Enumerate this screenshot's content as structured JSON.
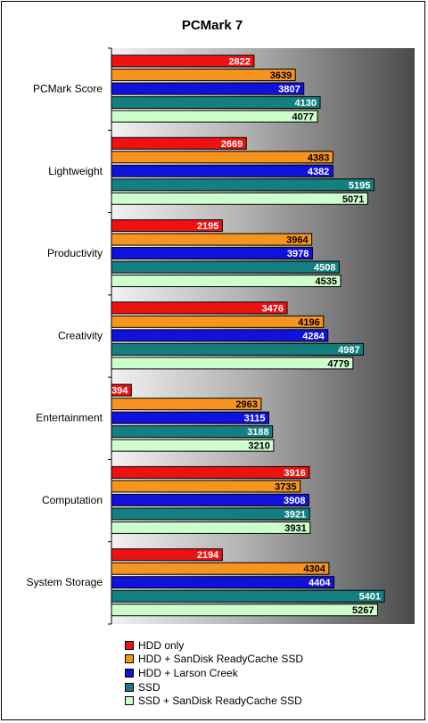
{
  "chart_data": {
    "type": "bar",
    "orientation": "horizontal",
    "title": "PCMark 7",
    "categories": [
      "PCMark Score",
      "Lightweight",
      "Productivity",
      "Creativity",
      "Entertainment",
      "Computation",
      "System Storage"
    ],
    "series": [
      {
        "name": "HDD only",
        "color": "#ee1111",
        "label_color": "#ffffff",
        "values": [
          2822,
          2669,
          2195,
          3476,
          394,
          3916,
          2194
        ]
      },
      {
        "name": "HDD + SanDisk ReadyCache SSD",
        "color": "#f7941d",
        "label_color": "#000000",
        "values": [
          3639,
          4383,
          3964,
          4196,
          2963,
          3735,
          4304
        ]
      },
      {
        "name": "HDD + Larson Creek",
        "color": "#1111dd",
        "label_color": "#ffffff",
        "values": [
          3807,
          4382,
          3978,
          4284,
          3115,
          3908,
          4404
        ]
      },
      {
        "name": "SSD",
        "color": "#137f7f",
        "label_color": "#ffffff",
        "values": [
          4130,
          5195,
          4508,
          4987,
          3188,
          3921,
          5401
        ]
      },
      {
        "name": "SSD + SanDisk ReadyCache SSD",
        "color": "#ccffcc",
        "label_color": "#000000",
        "values": [
          4077,
          5071,
          4535,
          4779,
          3210,
          3931,
          5267
        ]
      }
    ],
    "xlim": [
      0,
      6000
    ],
    "grid": false,
    "legend_position": "bottom"
  }
}
